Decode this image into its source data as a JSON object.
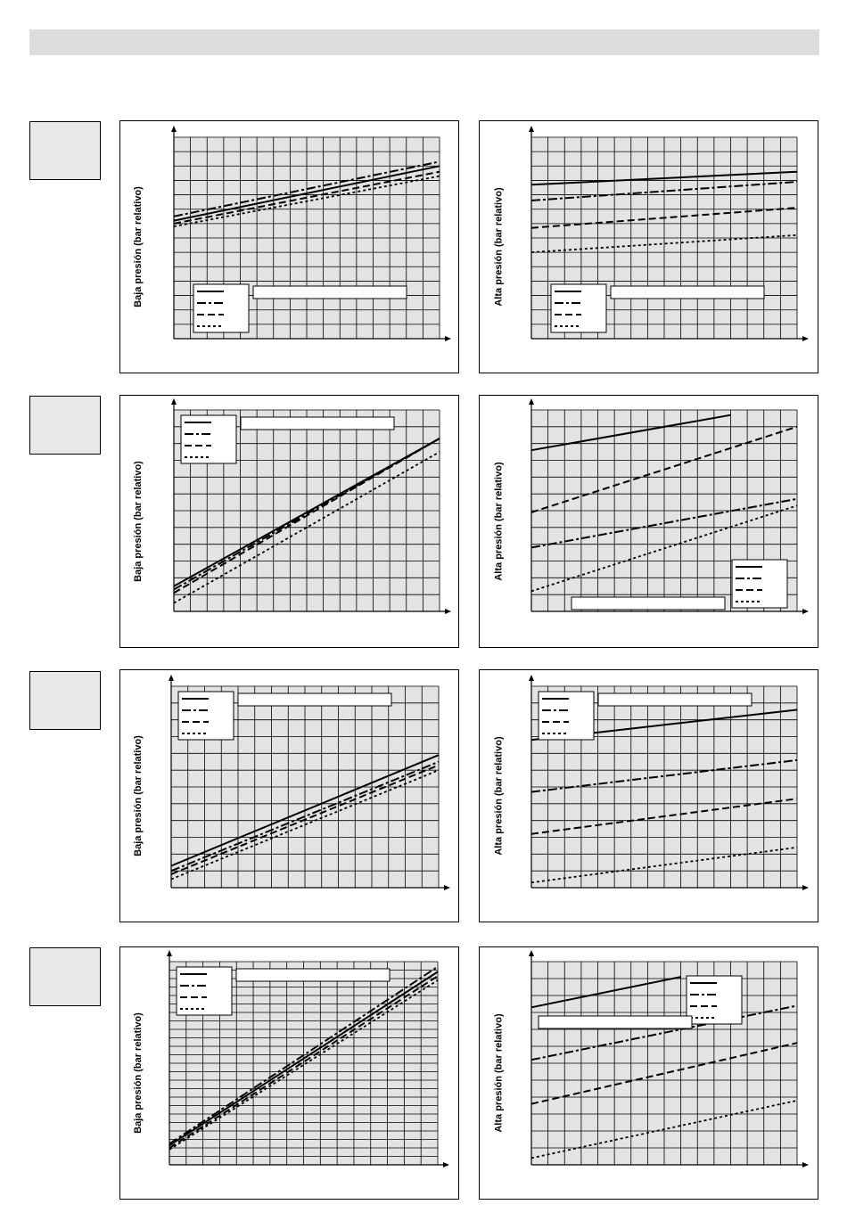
{
  "page": {
    "header_band_color": "#dcdcdc",
    "row_box_color": "#e8e8e8"
  },
  "colors": {
    "plot_background": "#e3e3e3",
    "grid": "#000000",
    "line": "#000000"
  },
  "legend_line_styles": [
    "solid",
    "dash-dot",
    "dashed",
    "dotted"
  ],
  "labels": {
    "low_pressure": "Baja presión (bar relativo)",
    "high_pressure": "Alta presión (bar relativo)"
  },
  "chart_data": [
    {
      "id": "row1-left",
      "type": "line",
      "ylabel": "Baja presión (bar relativo)",
      "grid": {
        "cols": 16,
        "rows": 14
      },
      "xlim": [
        0,
        16
      ],
      "ylim": [
        0,
        14
      ],
      "legend": "bottom-left",
      "series": [
        {
          "style": "solid",
          "x": [
            0,
            16
          ],
          "y": [
            8.2,
            12.0
          ]
        },
        {
          "style": "dash-dot",
          "x": [
            0,
            16
          ],
          "y": [
            8.5,
            12.3
          ]
        },
        {
          "style": "dashed",
          "x": [
            0,
            16
          ],
          "y": [
            8.0,
            11.6
          ]
        },
        {
          "style": "dotted",
          "x": [
            0,
            16
          ],
          "y": [
            7.8,
            11.3
          ]
        }
      ]
    },
    {
      "id": "row1-right",
      "type": "line",
      "ylabel": "Alta presión (bar relativo)",
      "grid": {
        "cols": 16,
        "rows": 14
      },
      "xlim": [
        0,
        16
      ],
      "ylim": [
        0,
        14
      ],
      "legend": "bottom-left",
      "series": [
        {
          "style": "solid",
          "x": [
            0,
            16
          ],
          "y": [
            10.7,
            11.6
          ]
        },
        {
          "style": "dash-dot",
          "x": [
            0,
            16
          ],
          "y": [
            9.6,
            10.9
          ]
        },
        {
          "style": "dashed",
          "x": [
            0,
            16
          ],
          "y": [
            7.7,
            9.1
          ]
        },
        {
          "style": "dotted",
          "x": [
            0,
            16
          ],
          "y": [
            6.0,
            7.2
          ]
        }
      ]
    },
    {
      "id": "row2-left",
      "type": "line",
      "ylabel": "Baja presión (bar relativo)",
      "grid": {
        "cols": 16,
        "rows": 12
      },
      "xlim": [
        0,
        16
      ],
      "ylim": [
        0,
        12
      ],
      "legend": "top-left",
      "series": [
        {
          "style": "solid",
          "x": [
            0,
            16
          ],
          "y": [
            1.5,
            10.3
          ]
        },
        {
          "style": "dash-dot",
          "x": [
            0,
            16
          ],
          "y": [
            1.3,
            10.3
          ]
        },
        {
          "style": "dashed",
          "x": [
            0,
            16
          ],
          "y": [
            1.1,
            10.3
          ]
        },
        {
          "style": "dotted",
          "x": [
            0,
            16
          ],
          "y": [
            0.5,
            9.5
          ]
        }
      ]
    },
    {
      "id": "row2-right",
      "type": "line",
      "ylabel": "Alta presión (bar relativo)",
      "grid": {
        "cols": 16,
        "rows": 12
      },
      "xlim": [
        0,
        16
      ],
      "ylim": [
        0,
        12
      ],
      "legend": "bottom-right",
      "series": [
        {
          "style": "solid",
          "x": [
            0,
            12
          ],
          "y": [
            9.6,
            11.7
          ]
        },
        {
          "style": "dashed",
          "x": [
            0,
            16
          ],
          "y": [
            5.9,
            11.0
          ]
        },
        {
          "style": "dash-dot",
          "x": [
            0,
            16
          ],
          "y": [
            3.8,
            6.7
          ]
        },
        {
          "style": "dotted",
          "x": [
            0,
            16
          ],
          "y": [
            1.2,
            6.3
          ]
        }
      ]
    },
    {
      "id": "row3-left",
      "type": "line",
      "ylabel": "Baja presión (bar relativo)",
      "grid": {
        "cols": 16,
        "rows": 12
      },
      "xlim": [
        0,
        16
      ],
      "ylim": [
        0,
        12
      ],
      "legend": "top-left",
      "series": [
        {
          "style": "solid",
          "x": [
            0,
            16
          ],
          "y": [
            1.3,
            7.9
          ]
        },
        {
          "style": "dash-dot",
          "x": [
            0,
            16
          ],
          "y": [
            1.0,
            7.5
          ]
        },
        {
          "style": "dashed",
          "x": [
            0,
            16
          ],
          "y": [
            0.8,
            7.3
          ]
        },
        {
          "style": "dotted",
          "x": [
            0,
            16
          ],
          "y": [
            0.5,
            7.0
          ]
        }
      ]
    },
    {
      "id": "row3-right",
      "type": "line",
      "ylabel": "Alta presión (bar relativo)",
      "grid": {
        "cols": 16,
        "rows": 12
      },
      "xlim": [
        0,
        16
      ],
      "ylim": [
        0,
        12
      ],
      "legend": "top-left",
      "series": [
        {
          "style": "solid",
          "x": [
            0,
            16
          ],
          "y": [
            8.8,
            10.6
          ]
        },
        {
          "style": "dash-dot",
          "x": [
            0,
            16
          ],
          "y": [
            5.7,
            7.6
          ]
        },
        {
          "style": "dashed",
          "x": [
            0,
            16
          ],
          "y": [
            3.2,
            5.3
          ]
        },
        {
          "style": "dotted",
          "x": [
            0,
            16
          ],
          "y": [
            0.3,
            2.4
          ]
        }
      ]
    },
    {
      "id": "row4-left",
      "type": "line",
      "ylabel": "Baja presión (bar relativo)",
      "grid": {
        "cols": 16,
        "rows": 24
      },
      "xlim": [
        0,
        16
      ],
      "ylim": [
        0,
        24
      ],
      "legend": "top-left",
      "series": [
        {
          "style": "solid",
          "x": [
            0,
            16
          ],
          "y": [
            2.3,
            22.8
          ]
        },
        {
          "style": "dash-dot",
          "x": [
            0,
            16
          ],
          "y": [
            2.5,
            23.4
          ]
        },
        {
          "style": "dashed",
          "x": [
            0,
            16
          ],
          "y": [
            2.0,
            22.3
          ]
        },
        {
          "style": "dotted",
          "x": [
            0,
            16
          ],
          "y": [
            1.8,
            21.8
          ]
        }
      ]
    },
    {
      "id": "row4-right",
      "type": "line",
      "ylabel": "Alta presión (bar relativo)",
      "grid": {
        "cols": 16,
        "rows": 12
      },
      "xlim": [
        0,
        16
      ],
      "ylim": [
        0,
        12
      ],
      "legend": "top-right",
      "series": [
        {
          "style": "solid",
          "x": [
            0,
            9
          ],
          "y": [
            9.3,
            11.1
          ]
        },
        {
          "style": "dash-dot",
          "x": [
            0,
            16
          ],
          "y": [
            6.2,
            9.4
          ]
        },
        {
          "style": "dashed",
          "x": [
            0,
            16
          ],
          "y": [
            3.6,
            7.2
          ]
        },
        {
          "style": "dotted",
          "x": [
            0,
            16
          ],
          "y": [
            0.4,
            3.8
          ]
        }
      ]
    }
  ]
}
